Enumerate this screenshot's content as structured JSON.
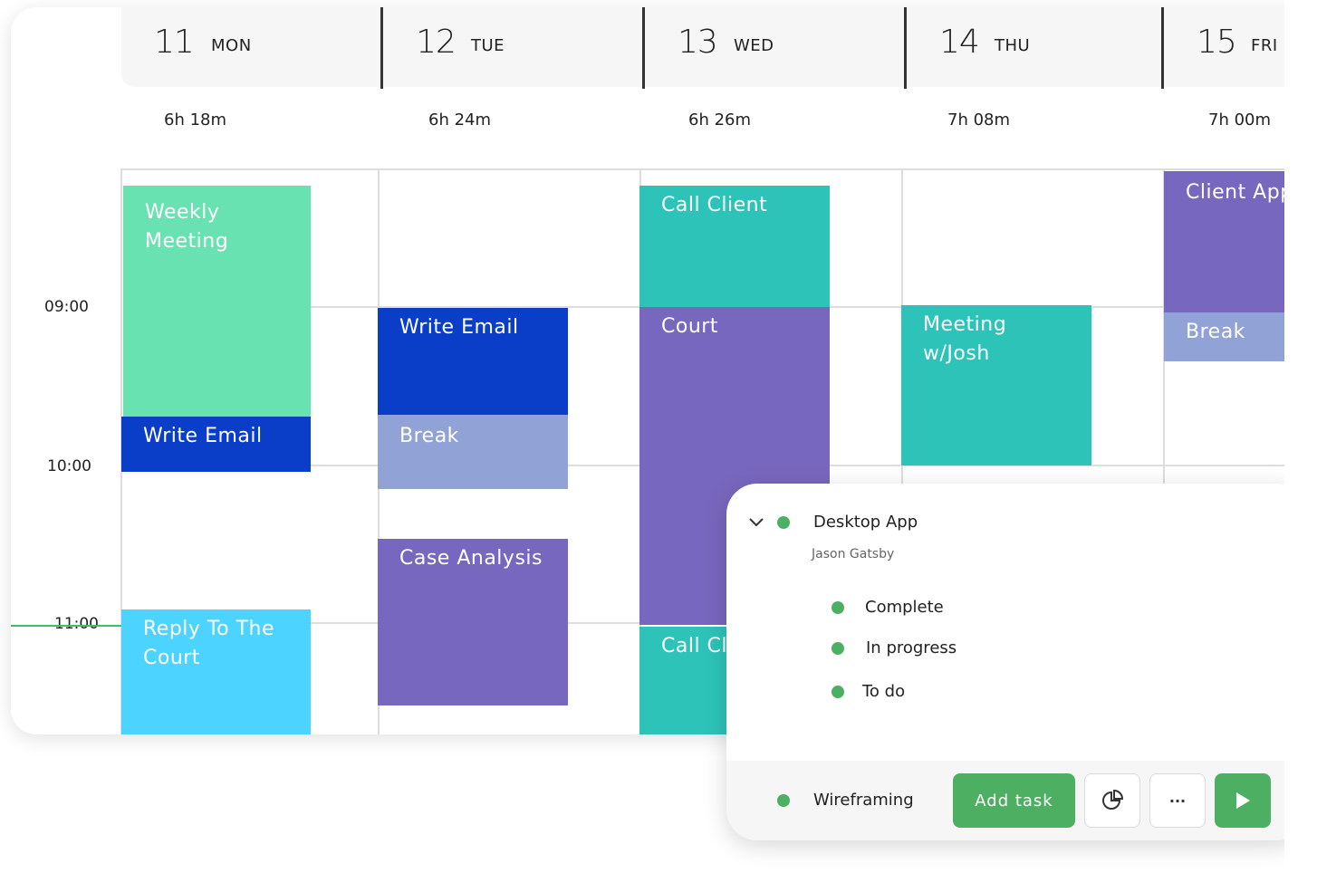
{
  "days": [
    {
      "num": "11",
      "name": "MON",
      "duration": "6h 18m"
    },
    {
      "num": "12",
      "name": "TUE",
      "duration": "6h 24m"
    },
    {
      "num": "13",
      "name": "WED",
      "duration": "6h 26m"
    },
    {
      "num": "14",
      "name": "THU",
      "duration": "7h 08m"
    },
    {
      "num": "15",
      "name": "FRI",
      "duration": "7h 00m"
    }
  ],
  "times": [
    "09:00",
    "10:00",
    "11:00"
  ],
  "events": {
    "weekly_meeting": "Weekly Meeting",
    "mon_write_email": "Write Email",
    "reply_court": "Reply To The Court",
    "tue_write_email": "Write Email",
    "tue_break": "Break",
    "case_analysis": "Case Analysis",
    "call_client": "Call Client",
    "court": "Court",
    "call_client_2": "Call Cl",
    "meeting_josh": "Meeting w/Josh",
    "client_appointment": "Client Appointm",
    "fri_break": "Break"
  },
  "colors": {
    "mint": "#69e2b1",
    "navy": "#0a3dc8",
    "sky": "#4cd3ff",
    "periwinkle": "#91a3d6",
    "purple": "#7867be",
    "teal": "#2dc3b9",
    "green": "#4caf62"
  },
  "popup": {
    "project": "Desktop App",
    "owner": "Jason Gatsby",
    "statuses": [
      "Complete",
      "In progress",
      "To do"
    ],
    "footer_task": "Wireframing",
    "add_task_label": "Add task",
    "more_label": "···"
  }
}
